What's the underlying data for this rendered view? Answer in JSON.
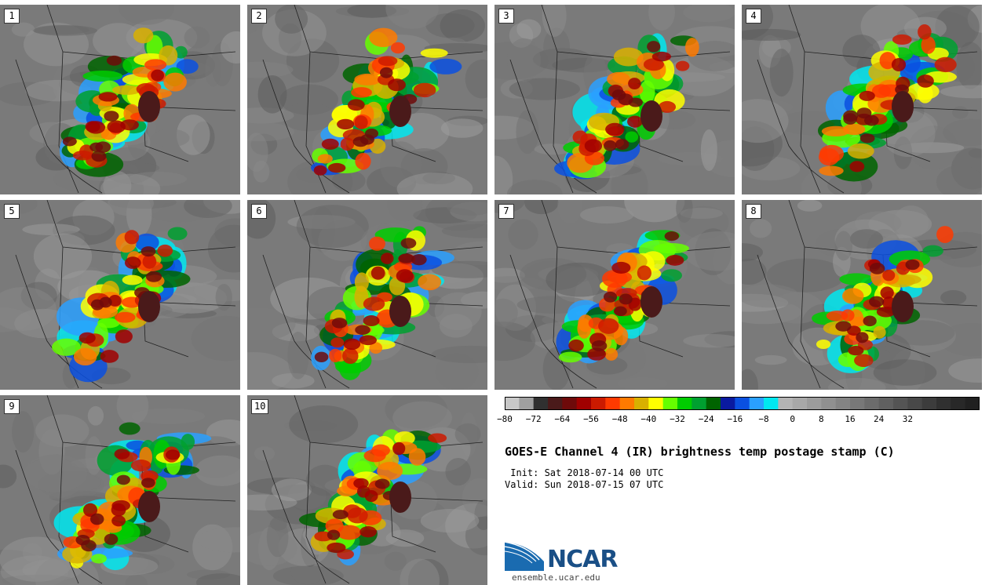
{
  "panels": [
    {
      "label": "1"
    },
    {
      "label": "2"
    },
    {
      "label": "3"
    },
    {
      "label": "4"
    },
    {
      "label": "5"
    },
    {
      "label": "6"
    },
    {
      "label": "7"
    },
    {
      "label": "8"
    },
    {
      "label": "9"
    },
    {
      "label": "10"
    }
  ],
  "colorbar": {
    "tick_labels": [
      "-80",
      "-72",
      "-64",
      "-56",
      "-48",
      "-40",
      "-32",
      "-24",
      "-16",
      "-8",
      "0",
      "8",
      "16",
      "24",
      "32"
    ],
    "colors": [
      "#c8c8c8",
      "#a0a0a0",
      "#303030",
      "#4a1a1a",
      "#6e0a0a",
      "#a00000",
      "#cc1a00",
      "#ff3a00",
      "#ff7a00",
      "#d9b000",
      "#ffff00",
      "#66ff00",
      "#00cc00",
      "#00a030",
      "#006400",
      "#0a1aa0",
      "#0a50e0",
      "#2aa0ff",
      "#00e8f0",
      "#b4b4b4",
      "#a8a8a8",
      "#9c9c9c",
      "#909090",
      "#848484",
      "#787878",
      "#6c6c6c",
      "#606060",
      "#545454",
      "#484848",
      "#3c3c3c",
      "#303030",
      "#282828",
      "#202020"
    ]
  },
  "title": "GOES-E Channel 4 (IR) brightness temp postage stamp (C)",
  "init_line": " Init: Sat 2018-07-14 00 UTC",
  "valid_line": "Valid: Sun 2018-07-15 07 UTC",
  "logo": {
    "text": "NCAR",
    "site": "ensemble.ucar.edu"
  }
}
